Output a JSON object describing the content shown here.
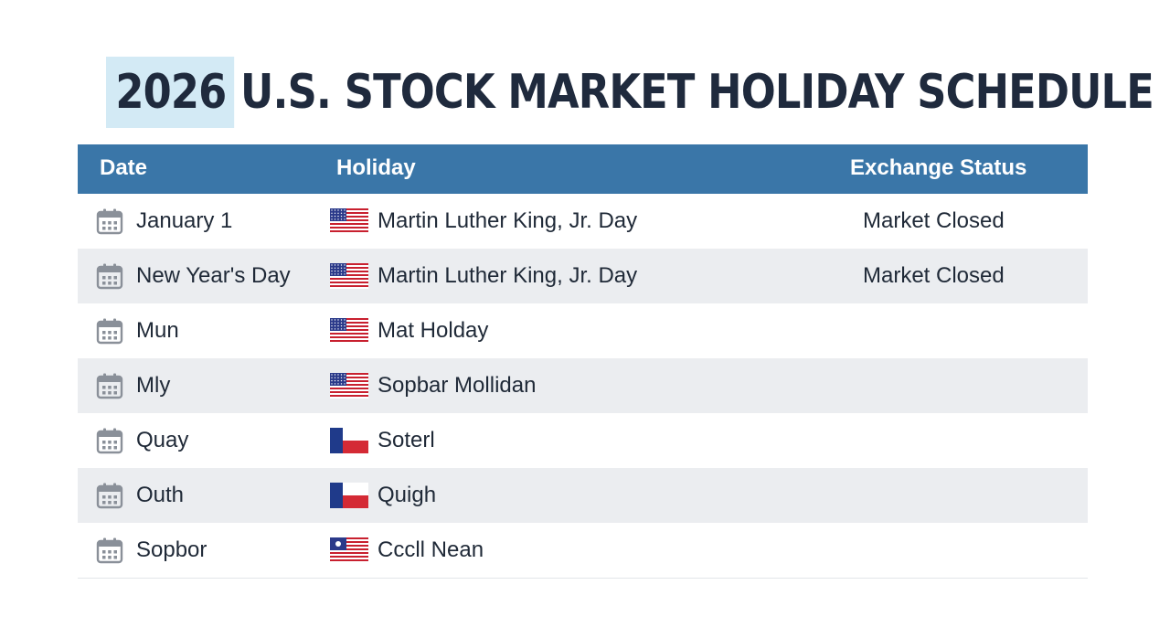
{
  "title": {
    "year": "2026",
    "rest": "U.S. STOCK MARKET HOLIDAY SCHEDULE"
  },
  "table": {
    "headers": {
      "date": "Date",
      "holiday": "Holiday",
      "status": "Exchange Status"
    },
    "rows": [
      {
        "date": "January 1",
        "holiday": "Martin Luther King, Jr. Day",
        "status": "Market Closed",
        "flag": "us-flag-icon"
      },
      {
        "date": "New Year's Day",
        "holiday": "Martin Luther King, Jr. Day",
        "status": "Market Closed",
        "flag": "us-flag-icon"
      },
      {
        "date": "Mun",
        "holiday": "Mat Holday",
        "status": "",
        "flag": "us-flag-icon"
      },
      {
        "date": "Mly",
        "holiday": "Sopbar Mollidan",
        "status": "",
        "flag": "us-flag-icon"
      },
      {
        "date": "Quay",
        "holiday": "Soterl",
        "status": "",
        "flag": "lone-star-flag-icon"
      },
      {
        "date": "Outh",
        "holiday": "Quigh",
        "status": "",
        "flag": "lone-star-flag-icon"
      },
      {
        "date": "Sopbor",
        "holiday": "Cccll Nean",
        "status": "",
        "flag": "emblem-flag-icon"
      }
    ]
  },
  "colors": {
    "header_bg": "#3a76a8",
    "title_highlight": "#d3eaf5",
    "alt_row": "#ebedf0",
    "calendar_icon": "#8a9099"
  }
}
